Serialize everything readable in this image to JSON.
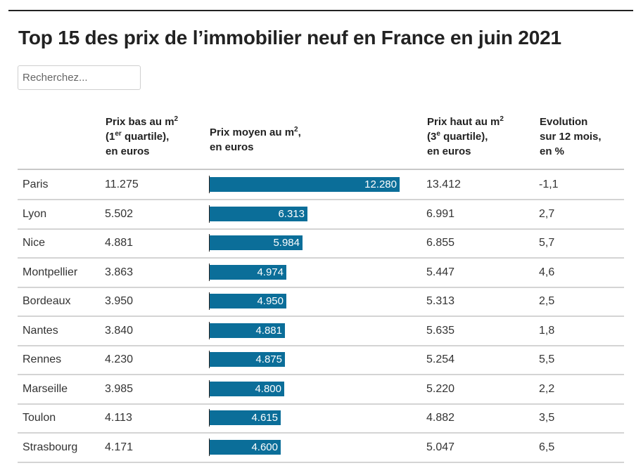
{
  "title": "Top 15 des prix de l’immobilier neuf en France en juin 2021",
  "search": {
    "placeholder": "Recherchez..."
  },
  "headers": {
    "low": {
      "l1a": "Prix bas au m",
      "l1sup": "2",
      "l2a": "(1",
      "l2sup": "er",
      "l2b": " quartile),",
      "l3": "en euros"
    },
    "avg": {
      "l1a": "Prix moyen au m",
      "l1sup": "2",
      "l1b": ",",
      "l2": "en euros"
    },
    "high": {
      "l1a": "Prix haut au m",
      "l1sup": "2",
      "l2a": "(3",
      "l2sup": "e",
      "l2b": " quartile),",
      "l3": "en euros"
    },
    "evol": {
      "l1": "Evolution",
      "l2": "sur 12 mois,",
      "l3": "en %"
    }
  },
  "colors": {
    "bar": "#0b6e99"
  },
  "chart_data": {
    "type": "table",
    "title": "Top 15 des prix de l’immobilier neuf en France en juin 2021",
    "columns": [
      "",
      "Prix bas au m2 (1er quartile), en euros",
      "Prix moyen au m2, en euros",
      "Prix haut au m2 (3e quartile), en euros",
      "Evolution sur 12 mois, en %"
    ],
    "bar_column": "Prix moyen au m2, en euros",
    "bar_max": 12280,
    "rows": [
      {
        "city": "Paris",
        "low": "11.275",
        "avg": 12280,
        "avg_label": "12.280",
        "high": "13.412",
        "evol": "-1,1"
      },
      {
        "city": "Lyon",
        "low": "5.502",
        "avg": 6313,
        "avg_label": "6.313",
        "high": "6.991",
        "evol": "2,7"
      },
      {
        "city": "Nice",
        "low": "4.881",
        "avg": 5984,
        "avg_label": "5.984",
        "high": "6.855",
        "evol": "5,7"
      },
      {
        "city": "Montpellier",
        "low": "3.863",
        "avg": 4974,
        "avg_label": "4.974",
        "high": "5.447",
        "evol": "4,6"
      },
      {
        "city": "Bordeaux",
        "low": "3.950",
        "avg": 4950,
        "avg_label": "4.950",
        "high": "5.313",
        "evol": "2,5"
      },
      {
        "city": "Nantes",
        "low": "3.840",
        "avg": 4881,
        "avg_label": "4.881",
        "high": "5.635",
        "evol": "1,8"
      },
      {
        "city": "Rennes",
        "low": "4.230",
        "avg": 4875,
        "avg_label": "4.875",
        "high": "5.254",
        "evol": "5,5"
      },
      {
        "city": "Marseille",
        "low": "3.985",
        "avg": 4800,
        "avg_label": "4.800",
        "high": "5.220",
        "evol": "2,2"
      },
      {
        "city": "Toulon",
        "low": "4.113",
        "avg": 4615,
        "avg_label": "4.615",
        "high": "4.882",
        "evol": "3,5"
      },
      {
        "city": "Strasbourg",
        "low": "4.171",
        "avg": 4600,
        "avg_label": "4.600",
        "high": "5.047",
        "evol": "6,5"
      }
    ]
  }
}
